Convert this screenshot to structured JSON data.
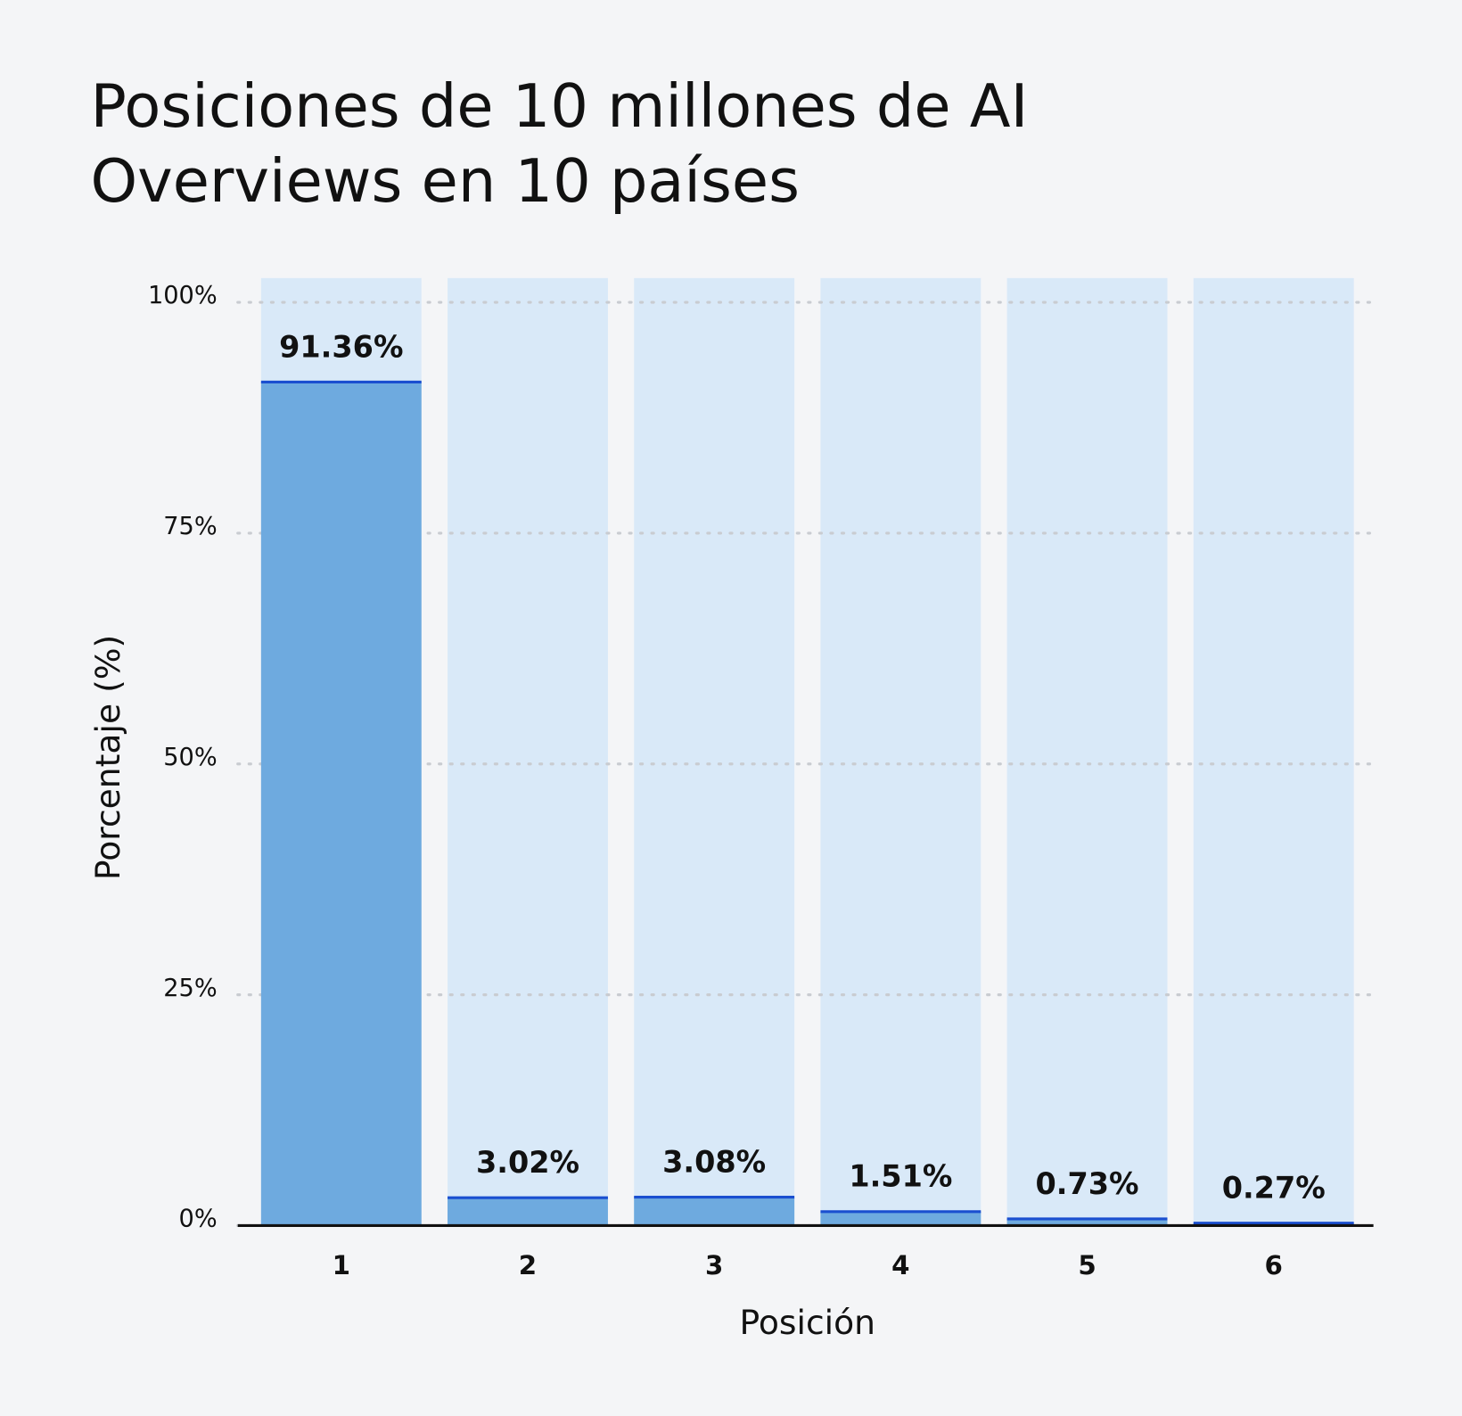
{
  "chart_data": {
    "type": "bar",
    "title": [
      "Posiciones de 10 millones de AI",
      "Overviews en 10 países"
    ],
    "x_label": "Posición",
    "y_label": "Porcentaje (%)",
    "categories": [
      "1",
      "2",
      "3",
      "4",
      "5",
      "6"
    ],
    "values": [
      91.36,
      3.02,
      3.08,
      1.51,
      0.73,
      0.27
    ],
    "value_labels": [
      "91.36%",
      "3.02%",
      "3.08%",
      "1.51%",
      "0.73%",
      "0.27%"
    ],
    "color": "#6eaadf",
    "edge_color": "#1a4fd0",
    "background_bar_color": "#d9e9f8",
    "ylim": [
      0,
      100
    ],
    "yticks": [
      {
        "value": 0,
        "label": "0%"
      },
      {
        "value": 25,
        "label": "25%"
      },
      {
        "value": 50,
        "label": "50%"
      },
      {
        "value": 75,
        "label": "75%"
      },
      {
        "value": 100,
        "label": "100%"
      }
    ],
    "grid": true
  }
}
